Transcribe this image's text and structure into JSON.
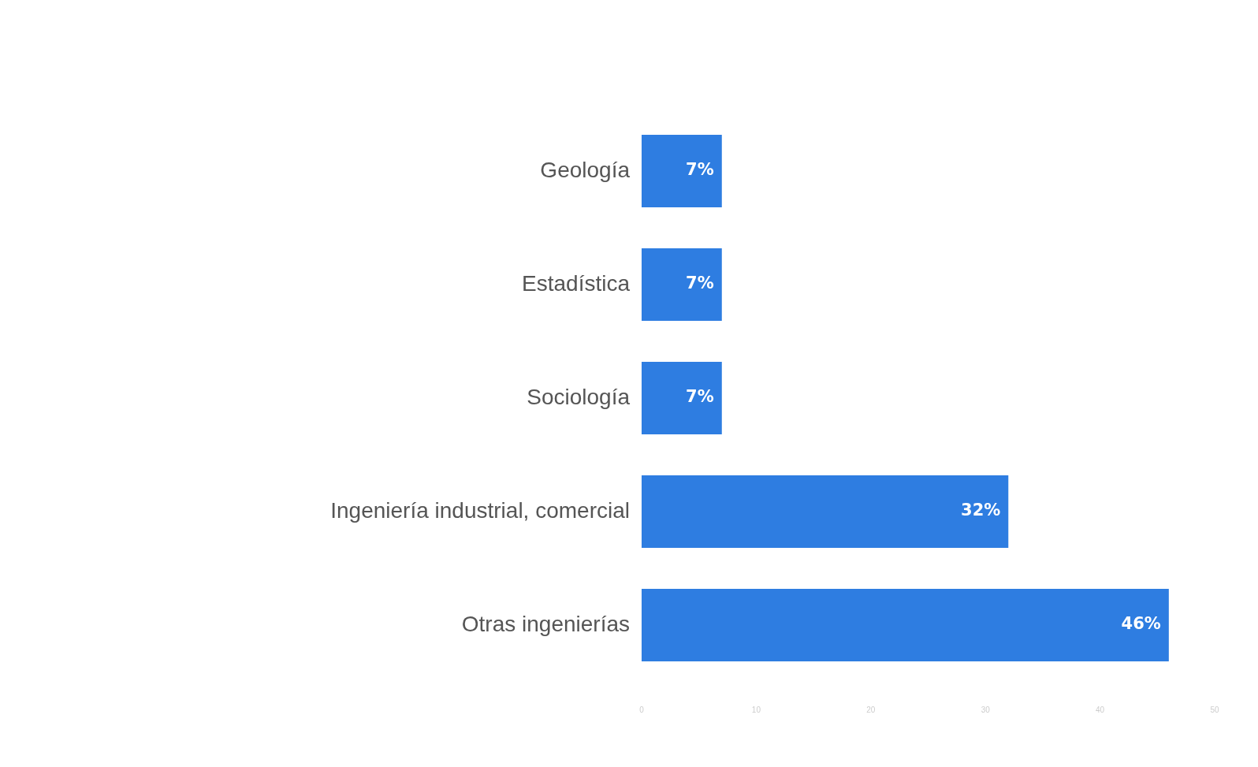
{
  "chart_data": {
    "type": "bar",
    "orientation": "horizontal",
    "categories": [
      "Geología",
      "Estadística",
      "Sociología",
      "Ingeniería industrial, comercial",
      "Otras ingenierías"
    ],
    "series": [
      {
        "color": "#2e7de1",
        "values": [
          7,
          7,
          7,
          32,
          46
        ],
        "value_labels": [
          "7%",
          "7%",
          "7%",
          "32%",
          "46%"
        ]
      }
    ],
    "xlim": [
      0,
      50
    ],
    "xticks": [
      0,
      10,
      20,
      30,
      40,
      50
    ],
    "grid": false,
    "legend": false
  }
}
